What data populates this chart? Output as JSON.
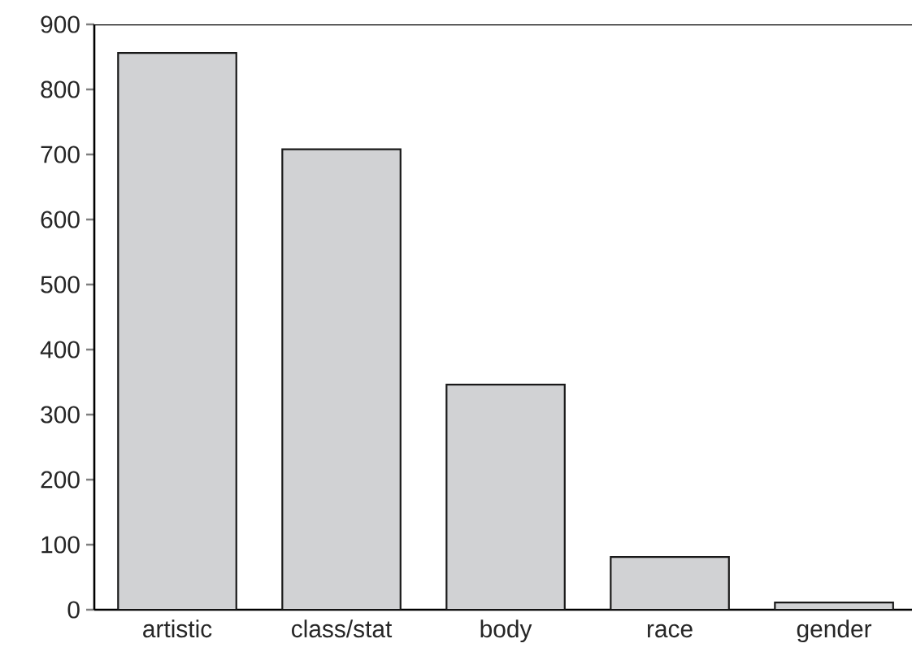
{
  "chart_data": {
    "type": "bar",
    "categories": [
      "artistic",
      "class/stat",
      "body",
      "race",
      "gender"
    ],
    "values": [
      856,
      708,
      346,
      81,
      11
    ],
    "color": "#d1d2d4",
    "ylim": [
      0,
      900
    ],
    "yticks": [
      0,
      100,
      200,
      300,
      400,
      500,
      600,
      700,
      800,
      900
    ]
  }
}
